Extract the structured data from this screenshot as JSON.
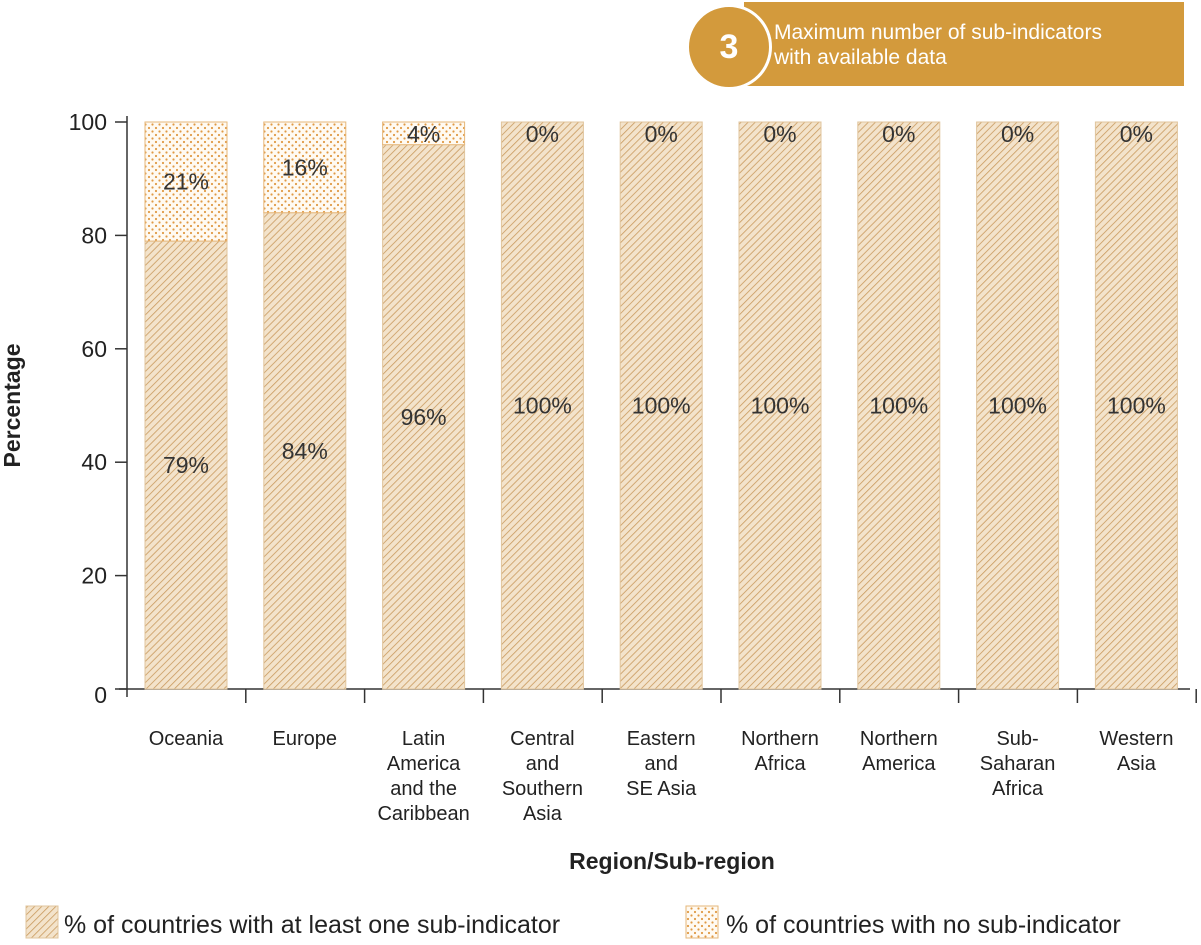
{
  "badge": {
    "number": "3",
    "line1": "Maximum number of sub-indicators",
    "line2": "with available data",
    "color": "#d39a3c"
  },
  "chart_data": {
    "type": "bar",
    "stacked": true,
    "xlabel": "Region/Sub-region",
    "ylabel": "Percentage",
    "ylim": [
      0,
      100
    ],
    "yticks": [
      0,
      20,
      40,
      60,
      80,
      100
    ],
    "grid": false,
    "legend_position": "bottom",
    "categories": [
      [
        "Oceania"
      ],
      [
        "Europe"
      ],
      [
        "Latin",
        "America",
        "and the",
        "Caribbean"
      ],
      [
        "Central",
        "and",
        "Southern",
        "Asia"
      ],
      [
        "Eastern",
        "and",
        "SE Asia"
      ],
      [
        "Northern",
        "Africa"
      ],
      [
        "Northern",
        "America"
      ],
      [
        "Sub-",
        "Saharan",
        "Africa"
      ],
      [
        "Western",
        "Asia"
      ]
    ],
    "series": [
      {
        "name": "% of countries with at least one sub-indicator",
        "pattern": "hatch",
        "color": "#dcb98a",
        "values": [
          79,
          84,
          96,
          100,
          100,
          100,
          100,
          100,
          100
        ],
        "labels": [
          "79%",
          "84%",
          "96%",
          "100%",
          "100%",
          "100%",
          "100%",
          "100%",
          "100%"
        ]
      },
      {
        "name": "% of countries with no sub-indicator",
        "pattern": "dots",
        "color": "#e2a352",
        "values": [
          21,
          16,
          4,
          0,
          0,
          0,
          0,
          0,
          0
        ],
        "labels": [
          "21%",
          "16%",
          "4%",
          "0%",
          "0%",
          "0%",
          "0%",
          "0%",
          "0%"
        ]
      }
    ]
  }
}
